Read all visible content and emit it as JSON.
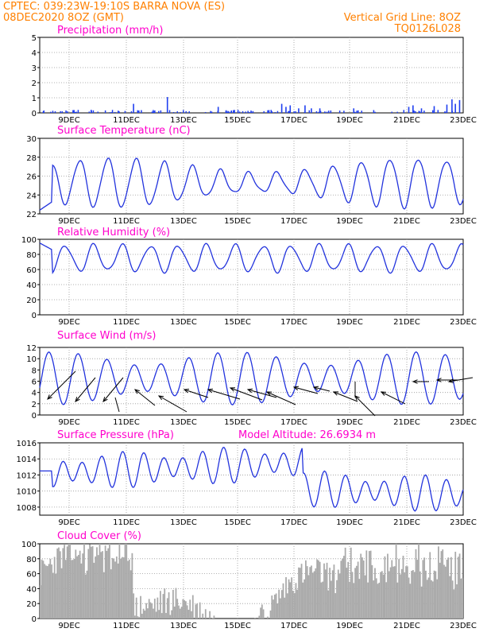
{
  "header": {
    "left_line1": "CPTEC:   039:23W-19:10S   BARRA NOVA (ES)",
    "left_line2": "08DEC2020 8OZ (GMT)",
    "right_line1": "Vertical Grid Line: 8OZ",
    "right_line2": "TQ0126L028"
  },
  "x_axis": {
    "tick_labels": [
      "9DEC",
      "11DEC",
      "13DEC",
      "15DEC",
      "17DEC",
      "19DEC",
      "21DEC",
      "23DEC"
    ]
  },
  "colors": {
    "header": "#ff8000",
    "panel_title": "#ff00cc",
    "series_line": "#2233dd",
    "precip_bars": "#1f3ff0",
    "cloud_bars": "#aaaaaa",
    "wind_arrows": "#000000",
    "grid": "#999999"
  },
  "chart_data": [
    {
      "type": "bar",
      "title": "Precipitation (mm/h)",
      "ylim": [
        0,
        5
      ],
      "yticks": [
        "0",
        "1",
        "2",
        "3",
        "4",
        "5"
      ],
      "grid": "dotted",
      "spikes": [
        {
          "x": 0.12,
          "v": 0.2
        },
        {
          "x": 0.22,
          "v": 0.6
        },
        {
          "x": 0.3,
          "v": 1.05
        },
        {
          "x": 0.42,
          "v": 0.4
        },
        {
          "x": 0.57,
          "v": 0.6
        },
        {
          "x": 0.58,
          "v": 0.4
        },
        {
          "x": 0.59,
          "v": 0.5
        },
        {
          "x": 0.61,
          "v": 0.3
        },
        {
          "x": 0.625,
          "v": 0.5
        },
        {
          "x": 0.64,
          "v": 0.3
        },
        {
          "x": 0.66,
          "v": 0.3
        },
        {
          "x": 0.74,
          "v": 0.3
        },
        {
          "x": 0.87,
          "v": 0.4
        },
        {
          "x": 0.88,
          "v": 0.5
        },
        {
          "x": 0.9,
          "v": 0.3
        },
        {
          "x": 0.93,
          "v": 0.45
        },
        {
          "x": 0.96,
          "v": 0.55
        },
        {
          "x": 0.972,
          "v": 0.9
        },
        {
          "x": 0.98,
          "v": 0.6
        },
        {
          "x": 0.99,
          "v": 0.85
        }
      ]
    },
    {
      "type": "line",
      "title": "Surface Temperature (nC)",
      "ylim": [
        22,
        30
      ],
      "yticks": [
        "22",
        "24",
        "26",
        "28",
        "30"
      ],
      "grid": "dotted",
      "y_start": 22.4
    },
    {
      "type": "line",
      "title": "Relative Humidity (%)",
      "ylim": [
        0,
        100
      ],
      "yticks": [
        "0",
        "20",
        "40",
        "60",
        "80",
        "100"
      ],
      "grid": "dotted",
      "y_start": 95
    },
    {
      "type": "line",
      "title": "Surface Wind (m/s)",
      "ylim": [
        0,
        12
      ],
      "yticks": [
        "0",
        "2",
        "4",
        "6",
        "8",
        "10",
        "12"
      ],
      "grid": "dotted",
      "wind_vectors": "arrows"
    },
    {
      "type": "line",
      "title": "Surface Pressure (hPa)",
      "annotation": "Model Altitude: 26.6934 m",
      "ylim": [
        1007,
        1016
      ],
      "yticks": [
        "1008",
        "1010",
        "1012",
        "1014",
        "1016"
      ],
      "grid": "dotted",
      "y_start": 1012.5
    },
    {
      "type": "bar",
      "title": "Cloud Cover (%)",
      "ylim": [
        0,
        100
      ],
      "yticks": [
        "0",
        "20",
        "40",
        "60",
        "80",
        "100"
      ],
      "grid": "dotted"
    }
  ]
}
